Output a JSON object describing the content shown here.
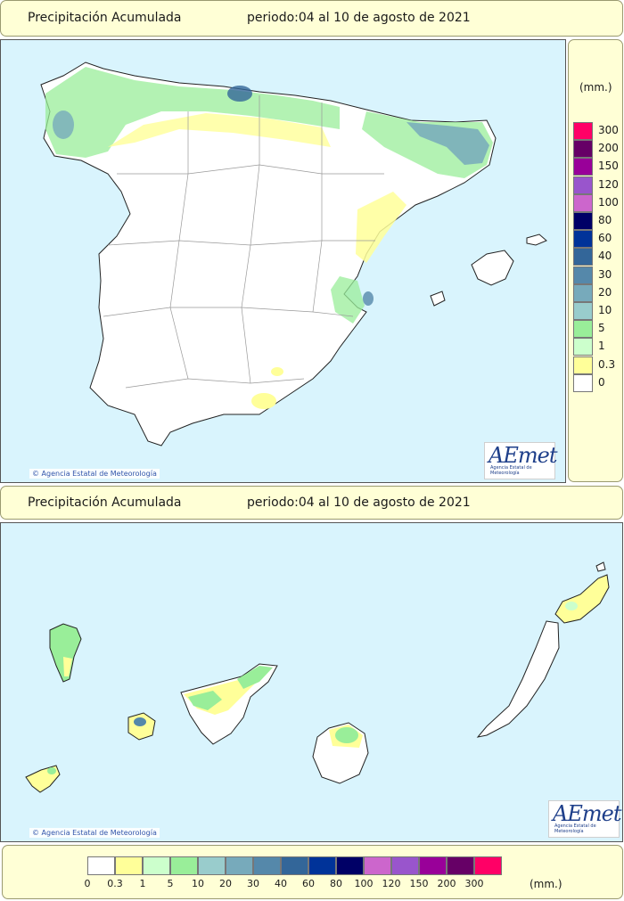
{
  "top_bar": {
    "title": "Precipitación Acumulada",
    "period": "periodo:04 al 10 de agosto de 2021"
  },
  "bottom_bar": {
    "title": "Precipitación Acumulada",
    "period": "periodo:04 al 10 de agosto de 2021"
  },
  "copyright": {
    "mainland": "Agencia Estatal de Meteorología",
    "canarias": "Agencia Estatal de Meteorología"
  },
  "logo": {
    "name": "AEmet",
    "subtitle": "Agencia Estatal de Meteorología"
  },
  "legend": {
    "unit": "(mm.)",
    "levels": [
      {
        "label": "0",
        "color": "#ffffff"
      },
      {
        "label": "0.3",
        "color": "#ffff99"
      },
      {
        "label": "1",
        "color": "#ccffcc"
      },
      {
        "label": "5",
        "color": "#99ee99"
      },
      {
        "label": "10",
        "color": "#99cccc"
      },
      {
        "label": "20",
        "color": "#77aabb"
      },
      {
        "label": "30",
        "color": "#5588aa"
      },
      {
        "label": "40",
        "color": "#336699"
      },
      {
        "label": "60",
        "color": "#003399"
      },
      {
        "label": "80",
        "color": "#000066"
      },
      {
        "label": "100",
        "color": "#cc66cc"
      },
      {
        "label": "120",
        "color": "#9955cc"
      },
      {
        "label": "150",
        "color": "#990099"
      },
      {
        "label": "200",
        "color": "#660066"
      },
      {
        "label": "300",
        "color": "#ff0066"
      }
    ]
  }
}
